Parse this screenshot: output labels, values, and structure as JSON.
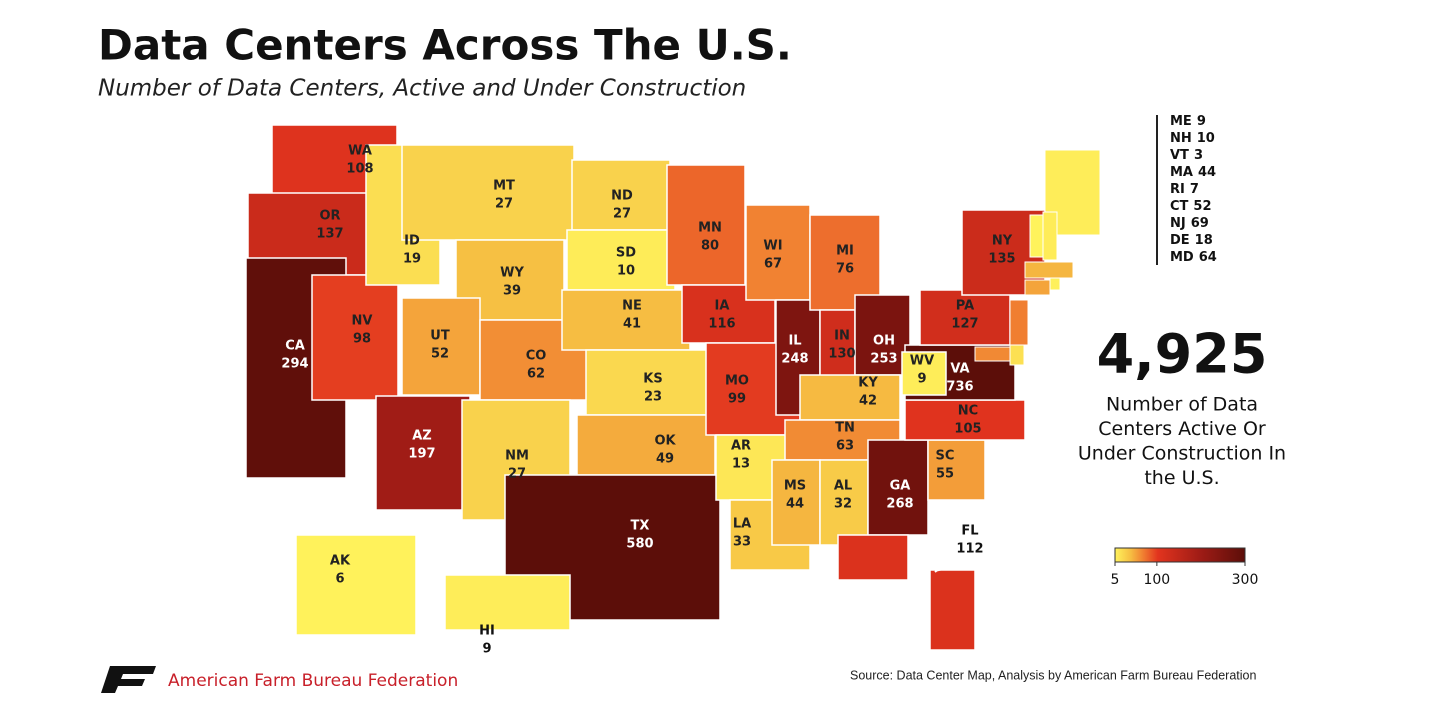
{
  "title": "Data Centers Across The U.S.",
  "subtitle": "Number of Data Centers, Active and Under Construction",
  "states": [
    {
      "abbr": "WA",
      "value": 108
    },
    {
      "abbr": "OR",
      "value": 137
    },
    {
      "abbr": "CA",
      "value": 294
    },
    {
      "abbr": "NV",
      "value": 98
    },
    {
      "abbr": "ID",
      "value": 19
    },
    {
      "abbr": "MT",
      "value": 27
    },
    {
      "abbr": "WY",
      "value": 39
    },
    {
      "abbr": "UT",
      "value": 52
    },
    {
      "abbr": "AZ",
      "value": 197
    },
    {
      "abbr": "CO",
      "value": 62
    },
    {
      "abbr": "NM",
      "value": 27
    },
    {
      "abbr": "ND",
      "value": 27
    },
    {
      "abbr": "SD",
      "value": 10
    },
    {
      "abbr": "NE",
      "value": 41
    },
    {
      "abbr": "KS",
      "value": 23
    },
    {
      "abbr": "OK",
      "value": 49
    },
    {
      "abbr": "TX",
      "value": 580
    },
    {
      "abbr": "MN",
      "value": 80
    },
    {
      "abbr": "IA",
      "value": 116
    },
    {
      "abbr": "MO",
      "value": 99
    },
    {
      "abbr": "AR",
      "value": 13
    },
    {
      "abbr": "LA",
      "value": 33
    },
    {
      "abbr": "WI",
      "value": 67
    },
    {
      "abbr": "IL",
      "value": 248
    },
    {
      "abbr": "MI",
      "value": 76
    },
    {
      "abbr": "IN",
      "value": 130
    },
    {
      "abbr": "OH",
      "value": 253
    },
    {
      "abbr": "KY",
      "value": 42
    },
    {
      "abbr": "TN",
      "value": 63
    },
    {
      "abbr": "MS",
      "value": 44
    },
    {
      "abbr": "AL",
      "value": 32
    },
    {
      "abbr": "GA",
      "value": 268
    },
    {
      "abbr": "FL",
      "value": 112
    },
    {
      "abbr": "SC",
      "value": 55
    },
    {
      "abbr": "NC",
      "value": 105
    },
    {
      "abbr": "VA",
      "value": 736
    },
    {
      "abbr": "WV",
      "value": 9
    },
    {
      "abbr": "PA",
      "value": 127
    },
    {
      "abbr": "NY",
      "value": 135
    },
    {
      "abbr": "AK",
      "value": 6
    },
    {
      "abbr": "HI",
      "value": 9
    }
  ],
  "small_states": [
    {
      "abbr": "ME",
      "value": 9
    },
    {
      "abbr": "NH",
      "value": 10
    },
    {
      "abbr": "VT",
      "value": 3
    },
    {
      "abbr": "MA",
      "value": 44
    },
    {
      "abbr": "RI",
      "value": 7
    },
    {
      "abbr": "CT",
      "value": 52
    },
    {
      "abbr": "NJ",
      "value": 69
    },
    {
      "abbr": "DE",
      "value": 18
    },
    {
      "abbr": "MD",
      "value": 64
    }
  ],
  "total": "4,925",
  "total_caption": [
    "Number of Data",
    "Centers Active Or",
    "Under Construction In",
    "the U.S."
  ],
  "legend_ticks": [
    5,
    100,
    300
  ],
  "source": "Source: Data Center Map, Analysis by American Farm Bureau Federation",
  "organization": "American Farm Bureau Federation"
}
